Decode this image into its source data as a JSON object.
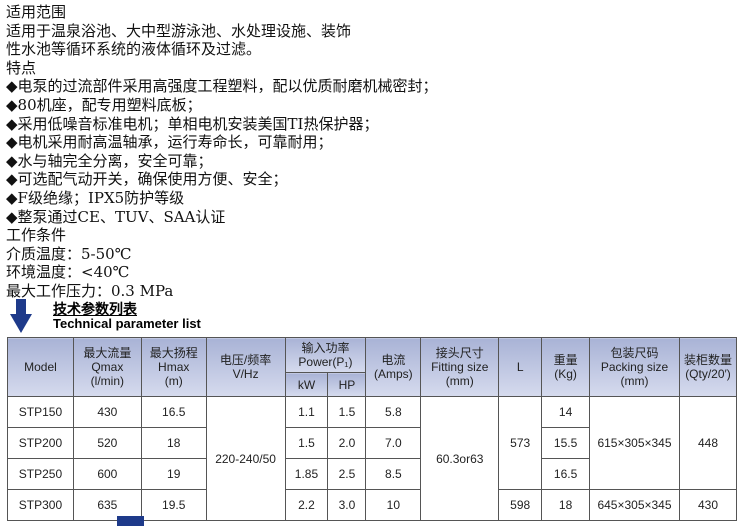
{
  "intro": {
    "lines": [
      "适用范围",
      "适用于温泉浴池、大中型游泳池、水处理设施、装饰",
      "性水池等循环系统的液体循环及过滤。",
      "特点",
      "◆电泵的过流部件采用高强度工程塑料，配以优质耐磨机械密封；",
      "◆80机座，配专用塑料底板；",
      "◆采用低噪音标准电机；单相电机安装美国TI热保护器；",
      "◆电机采用耐高温轴承，运行寿命长，可靠耐用；",
      "◆水与轴完全分离，安全可靠；",
      "◆可选配气动开关，确保使用方便、安全；",
      "◆F级绝缘；IPX5防护等级",
      "◆整泵通过CE、TUV、SAA认证",
      "工作条件",
      "介质温度：5-50℃",
      "环境温度：<40℃",
      "最大工作压力：0.3 MPa"
    ]
  },
  "section": {
    "title_cn": "技术参数列表",
    "title_en": "Technical parameter list",
    "arrow_icon": "arrow-down-icon",
    "accent": "#1e3a8a"
  },
  "table": {
    "headers": {
      "model": "Model",
      "qmax": "最大流量\nQmax\n(l/min)",
      "hmax": "最大扬程\nHmax\n(m)",
      "voltage": "电压/频率\nV/Hz",
      "power": "输入功率\nPower(P₁)",
      "kw": "kW",
      "hp": "HP",
      "amps": "电流\n(Amps)",
      "fitting": "接头尺寸\nFitting size\n(mm)",
      "l": "L",
      "weight": "重量\n(Kg)",
      "packing": "包装尺码\nPacking size\n(mm)",
      "qty": "装柜数量\n(Qty/20′)"
    },
    "rows": [
      {
        "model": "STP150",
        "qmax": "430",
        "hmax": "16.5",
        "kw": "1.1",
        "hp": "1.5",
        "amps": "5.8",
        "weight": "14"
      },
      {
        "model": "STP200",
        "qmax": "520",
        "hmax": "18",
        "kw": "1.5",
        "hp": "2.0",
        "amps": "7.0",
        "weight": "15.5"
      },
      {
        "model": "STP250",
        "qmax": "600",
        "hmax": "19",
        "kw": "1.85",
        "hp": "2.5",
        "amps": "8.5",
        "weight": "16.5"
      },
      {
        "model": "STP300",
        "qmax": "635",
        "hmax": "19.5",
        "kw": "2.2",
        "hp": "3.0",
        "amps": "10",
        "weight": "18"
      }
    ],
    "voltage": "220-240/50",
    "fitting": "60.3or63",
    "l_a": "573",
    "packing_a": "615×305×345",
    "qty_a": "448",
    "l_b": "598",
    "packing_b": "645×305×345",
    "qty_b": "430"
  }
}
